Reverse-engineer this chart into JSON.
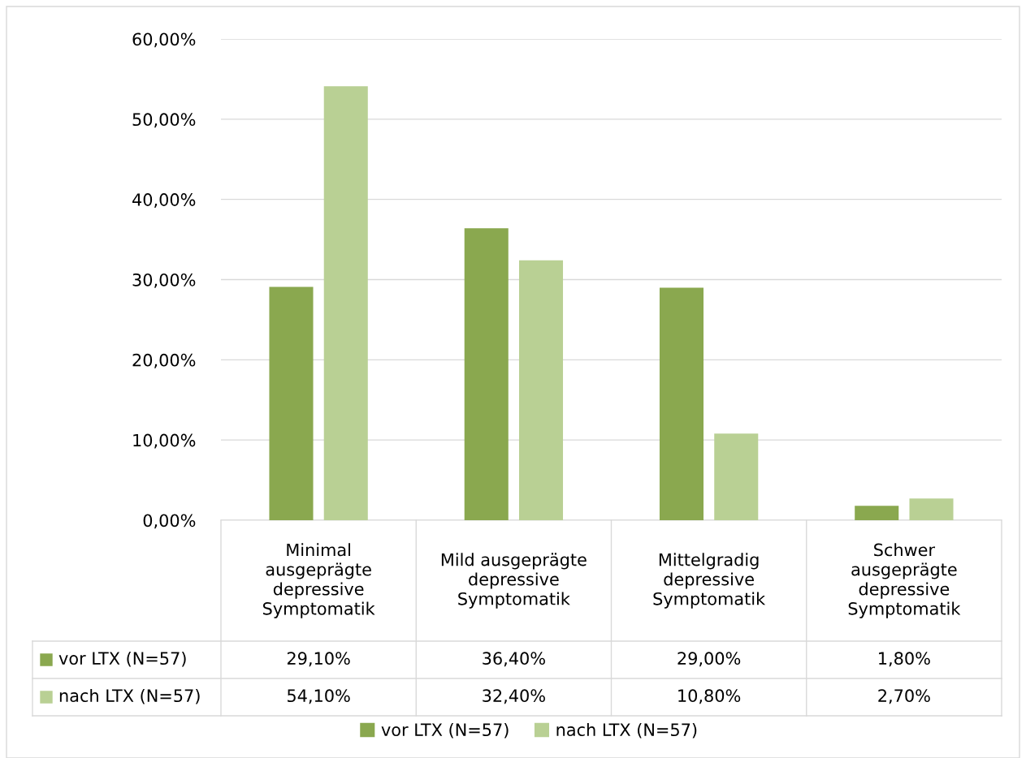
{
  "chart_data": {
    "type": "bar",
    "categories": [
      "Minimal\nausgeprägte\ndepressive\nSymptomatik",
      "Mild ausgeprägte\ndepressive\nSymptomatik",
      "Mittelgradig\ndepressive\nSymptomatik",
      "Schwer\nausgeprägte\ndepressive\nSymptomatik"
    ],
    "series": [
      {
        "name": "vor LTX (N=57)",
        "color": "#8aa84f",
        "values": [
          29.1,
          36.4,
          29.0,
          1.8
        ],
        "value_labels": [
          "29,10%",
          "36,40%",
          "29,00%",
          "1,80%"
        ]
      },
      {
        "name": "nach LTX (N=57)",
        "color": "#b9d094",
        "values": [
          54.1,
          32.4,
          10.8,
          2.7
        ],
        "value_labels": [
          "54,10%",
          "32,40%",
          "10,80%",
          "2,70%"
        ]
      }
    ],
    "ylim": [
      0,
      60
    ],
    "yticks": [
      {
        "value": 0,
        "label": "0,00%"
      },
      {
        "value": 10,
        "label": "10,00%"
      },
      {
        "value": 20,
        "label": "20,00%"
      },
      {
        "value": 30,
        "label": "30,00%"
      },
      {
        "value": 40,
        "label": "40,00%"
      },
      {
        "value": 50,
        "label": "50,00%"
      },
      {
        "value": 60,
        "label": "60,00%"
      }
    ],
    "grid": "y",
    "legend": "bottom"
  }
}
